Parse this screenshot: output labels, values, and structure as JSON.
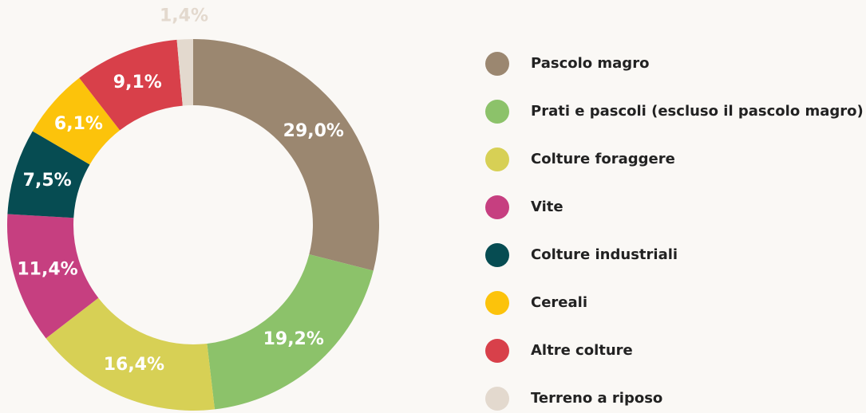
{
  "chart_data": {
    "type": "donut",
    "categories": [
      "Pascolo magro",
      "Prati e pascoli (escluso il pascolo magro)",
      "Colture foraggere",
      "Vite",
      "Colture industriali",
      "Cereali",
      "Altre colture",
      "Terreno a riposo"
    ],
    "values": [
      29.0,
      19.2,
      16.4,
      11.4,
      7.5,
      6.1,
      9.1,
      1.4
    ],
    "value_labels": [
      "29,0%",
      "19,2%",
      "16,4%",
      "11,4%",
      "7,5%",
      "6,1%",
      "9,1%",
      "1,4%"
    ],
    "colors": [
      "#9b8770",
      "#8cc26a",
      "#d7d055",
      "#c63f80",
      "#064c52",
      "#fcc30b",
      "#d8404a",
      "#e3d9ce"
    ],
    "legend": "right"
  }
}
